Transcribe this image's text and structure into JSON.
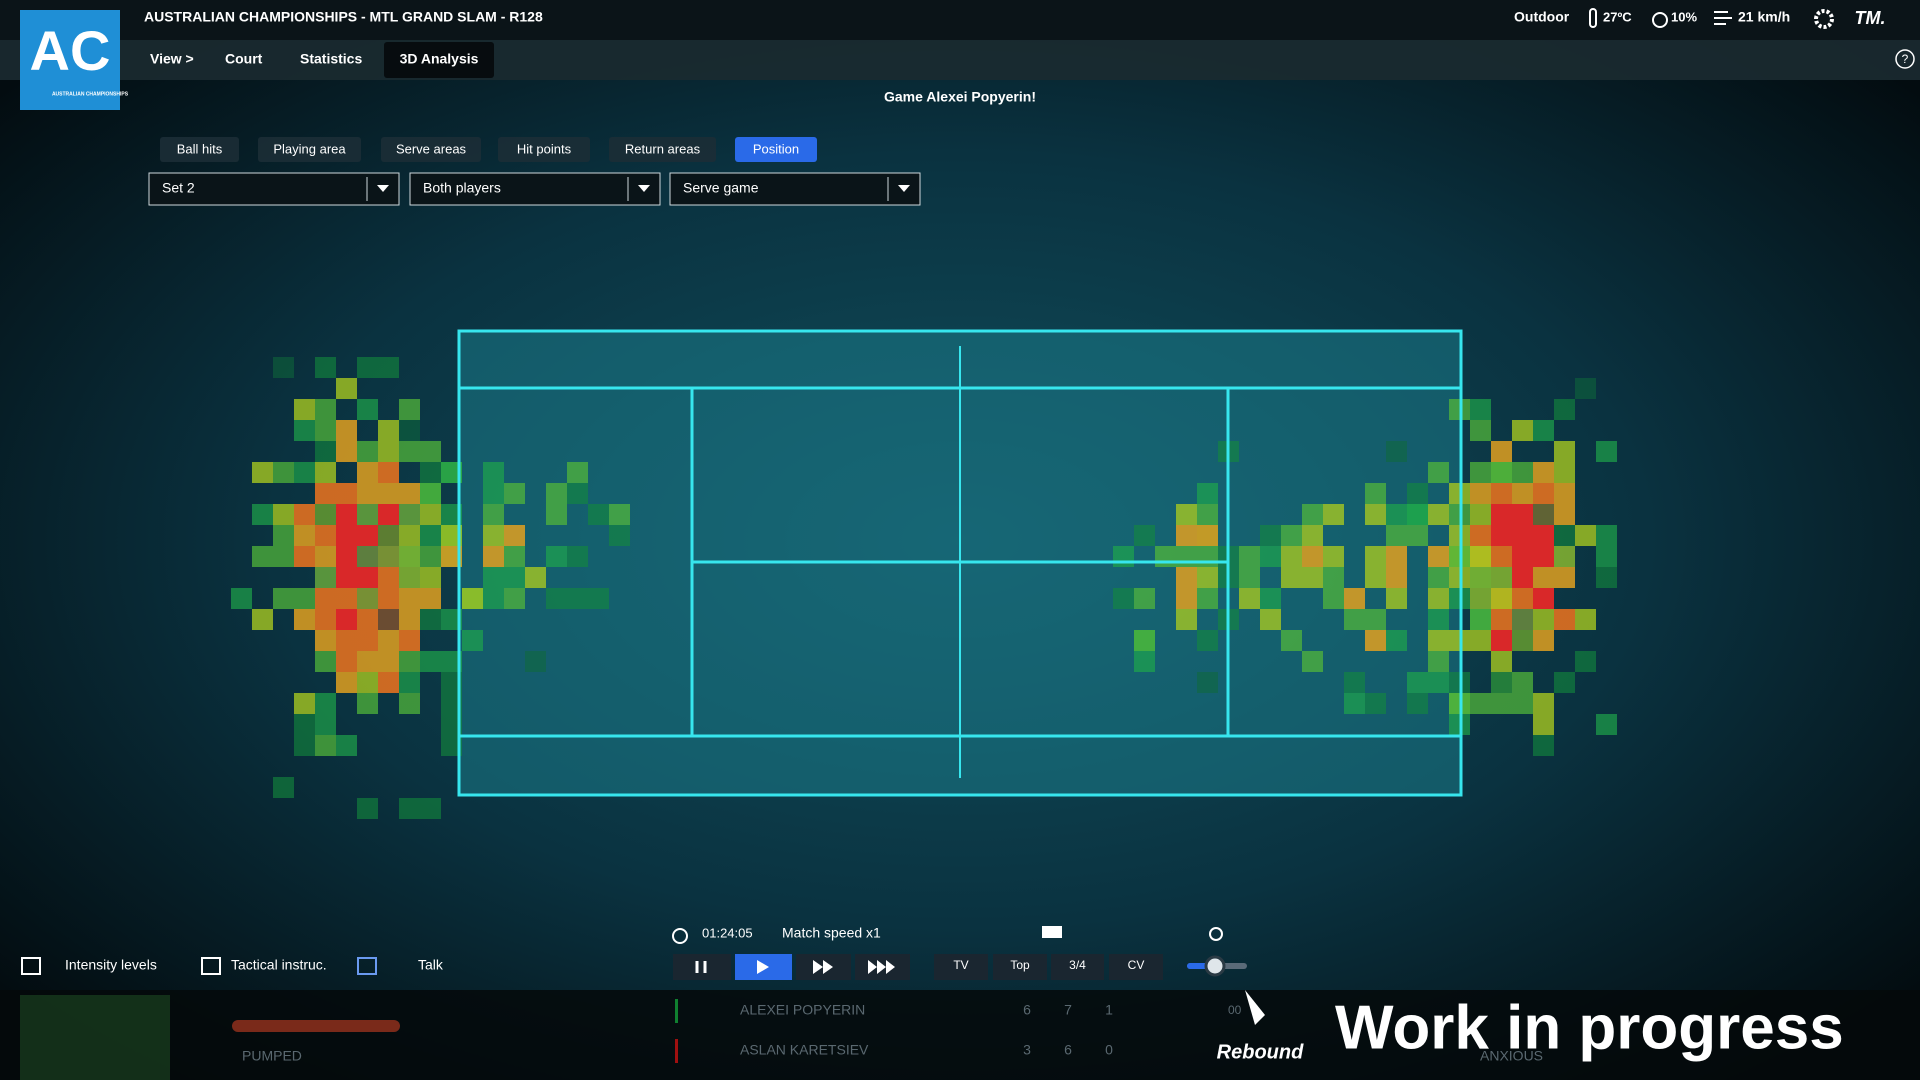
{
  "header": {
    "logo": "AC",
    "logo_sub": "AUSTRALIAN CHAMPIONSHIPS",
    "title": "AUSTRALIAN CHAMPIONSHIPS - MTL GRAND SLAM - R128",
    "weather": {
      "place": "Outdoor",
      "temperature": "27ºC",
      "humidity": "10%",
      "wind": "21 km/h"
    },
    "brand": "TM."
  },
  "nav": [
    "View >",
    "Court",
    "Statistics",
    "3D Analysis"
  ],
  "subtitle": "Game Alexei Popyerin!",
  "tabs": [
    "Ball hits",
    "Playing area",
    "Serve areas",
    "Hit points",
    "Return areas",
    "Position"
  ],
  "filters": [
    "Set 2",
    "Both players",
    "Serve game"
  ],
  "controls": {
    "clock": "01:24:05",
    "speed": "Match speed x1",
    "views": [
      "TV",
      "Top",
      "3/4",
      "CV"
    ]
  },
  "actions": [
    "Intensity levels",
    "Tactical instruc.",
    "Talk"
  ],
  "mood": [
    "PUMPED",
    "ANXIOUS"
  ],
  "score": {
    "marker": "00",
    "rows": [
      {
        "name": "ALEXEI POPYERIN",
        "sets": [
          "6",
          "7",
          "1"
        ]
      },
      {
        "name": "ASLAN KARETSIEV",
        "sets": [
          "3",
          "6",
          "0"
        ]
      }
    ]
  },
  "footer": {
    "studio": "Rebound",
    "banner": "Work in progress"
  }
}
